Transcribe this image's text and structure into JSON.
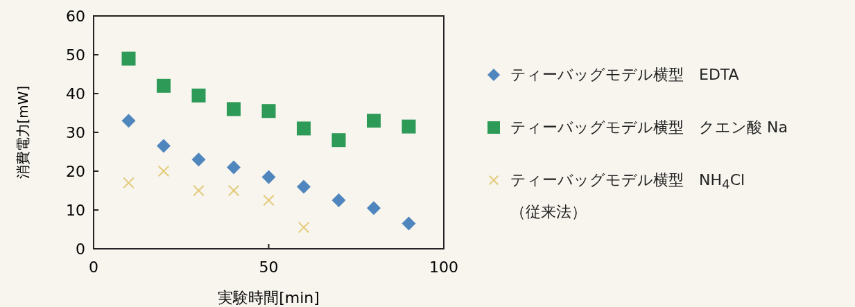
{
  "chart_data": {
    "type": "scatter",
    "xlabel": "実験時間[min]",
    "ylabel": "消費電力[mW]",
    "x": [
      10,
      20,
      30,
      40,
      50,
      60,
      70,
      80,
      90
    ],
    "xlim": [
      0,
      100
    ],
    "xticks": [
      0,
      50,
      100
    ],
    "ylim": [
      0,
      60
    ],
    "yticks": [
      0,
      10,
      20,
      30,
      40,
      50,
      60
    ],
    "legend": "right",
    "series": [
      {
        "name": "ティーバッグモデル横型　EDTA",
        "color": "#4f86bd",
        "marker": "diamond",
        "values": [
          33,
          26.5,
          23,
          21,
          18.5,
          16,
          12.5,
          10.5,
          6.5
        ]
      },
      {
        "name": "ティーバッグモデル横型　クエン酸 Na",
        "color": "#2e9a57",
        "marker": "square",
        "values": [
          49,
          42,
          39.5,
          36,
          35.5,
          31,
          28,
          33,
          31.5
        ]
      },
      {
        "name": "ティーバッグモデル横型　NH$_{4}$Cl （従来法）",
        "color": "#e3cb7a",
        "marker": "cross",
        "values": [
          17,
          20,
          15,
          15,
          12.5,
          5.5,
          null,
          null,
          null
        ]
      }
    ]
  }
}
